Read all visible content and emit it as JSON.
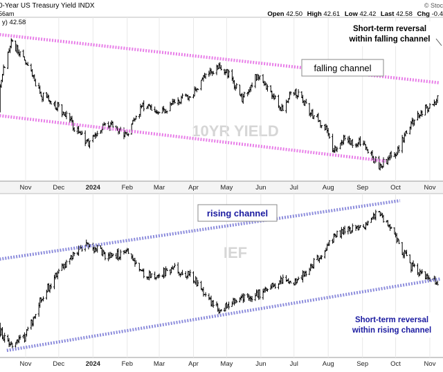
{
  "header": {
    "title": "0-Year US Treasury Yield",
    "exchange": "INDX",
    "brand": "© Stoc",
    "time": "56am",
    "ohlc": [
      {
        "label": "Open",
        "value": "42.50"
      },
      {
        "label": "High",
        "value": "42.61"
      },
      {
        "label": "Low",
        "value": "42.42"
      },
      {
        "label": "Last",
        "value": "42.58"
      },
      {
        "label": "Chg",
        "value": "-0.4"
      }
    ],
    "last_label": "y) 42.58"
  },
  "colors": {
    "falling_channel": "#e87ee8",
    "rising_channel": "#8c8cdc",
    "annotation_text_top": "#000000",
    "annotation_text_bottom": "#1a1aa0",
    "watermark": "#d6d6d6",
    "bars": "#000000"
  },
  "chart_data": [
    {
      "type": "ohlc",
      "panel": "top",
      "watermark": "10YR YIELD",
      "x_tick_labels": [
        "Nov",
        "Dec",
        "2024",
        "Feb",
        "Mar",
        "Apr",
        "May",
        "Jun",
        "Jul",
        "Aug",
        "Sep",
        "Oct",
        "Nov"
      ],
      "x_ticks": [
        "2023-11-01",
        "2023-12-01",
        "2024-01-01",
        "2024-02-01",
        "2024-03-01",
        "2024-04-01",
        "2024-05-01",
        "2024-06-01",
        "2024-07-01",
        "2024-08-01",
        "2024-09-01",
        "2024-10-01",
        "2024-11-01"
      ],
      "last_value": 42.58,
      "keypoints": [
        {
          "date": "2023-10-01",
          "y": 38.0
        },
        {
          "date": "2023-10-10",
          "y": 46.0
        },
        {
          "date": "2023-10-19",
          "y": 49.8
        },
        {
          "date": "2023-11-01",
          "y": 47.5
        },
        {
          "date": "2023-11-15",
          "y": 44.0
        },
        {
          "date": "2023-12-01",
          "y": 42.6
        },
        {
          "date": "2023-12-27",
          "y": 38.6
        },
        {
          "date": "2024-01-15",
          "y": 40.8
        },
        {
          "date": "2024-02-01",
          "y": 39.6
        },
        {
          "date": "2024-02-15",
          "y": 42.8
        },
        {
          "date": "2024-03-01",
          "y": 42.0
        },
        {
          "date": "2024-03-15",
          "y": 43.2
        },
        {
          "date": "2024-04-01",
          "y": 44.2
        },
        {
          "date": "2024-04-15",
          "y": 46.4
        },
        {
          "date": "2024-04-25",
          "y": 47.2
        },
        {
          "date": "2024-05-01",
          "y": 46.6
        },
        {
          "date": "2024-05-15",
          "y": 43.6
        },
        {
          "date": "2024-05-29",
          "y": 46.2
        },
        {
          "date": "2024-06-10",
          "y": 44.2
        },
        {
          "date": "2024-06-20",
          "y": 42.5
        },
        {
          "date": "2024-07-01",
          "y": 44.5
        },
        {
          "date": "2024-07-15",
          "y": 42.2
        },
        {
          "date": "2024-08-01",
          "y": 40.0
        },
        {
          "date": "2024-08-05",
          "y": 37.8
        },
        {
          "date": "2024-08-15",
          "y": 39.2
        },
        {
          "date": "2024-09-01",
          "y": 38.5
        },
        {
          "date": "2024-09-16",
          "y": 36.2
        },
        {
          "date": "2024-10-01",
          "y": 37.6
        },
        {
          "date": "2024-10-15",
          "y": 40.8
        },
        {
          "date": "2024-11-01",
          "y": 42.9
        },
        {
          "date": "2024-11-10",
          "y": 43.6
        }
      ],
      "ylim": [
        34.5,
        52.5
      ],
      "channel": [
        {
          "name": "upper",
          "start": {
            "date": "2023-10-01",
            "y": 50.7
          },
          "end": {
            "date": "2024-11-10",
            "y": 45.3
          }
        },
        {
          "name": "lower",
          "start": {
            "date": "2023-10-01",
            "y": 41.8
          },
          "end": {
            "date": "2024-09-22",
            "y": 36.7
          }
        }
      ],
      "annotations": [
        {
          "text": "falling channel",
          "boxed": true
        },
        {
          "text": "Short-term reversal\nwithin falling channel",
          "boxed": false
        }
      ]
    },
    {
      "type": "ohlc",
      "panel": "bottom",
      "watermark": "IEF",
      "x_tick_labels": [
        "Nov",
        "Dec",
        "2024",
        "Feb",
        "Mar",
        "Apr",
        "May",
        "Jun",
        "Jul",
        "Aug",
        "Sep",
        "Oct",
        "Nov"
      ],
      "x_ticks": [
        "2023-11-01",
        "2023-12-01",
        "2024-01-01",
        "2024-02-01",
        "2024-03-01",
        "2024-04-01",
        "2024-05-01",
        "2024-06-01",
        "2024-07-01",
        "2024-08-01",
        "2024-09-01",
        "2024-10-01",
        "2024-11-01"
      ],
      "keypoints": [
        {
          "date": "2023-10-01",
          "y": 89.0
        },
        {
          "date": "2023-10-19",
          "y": 86.8
        },
        {
          "date": "2023-11-01",
          "y": 87.6
        },
        {
          "date": "2023-11-15",
          "y": 90.8
        },
        {
          "date": "2023-12-01",
          "y": 93.2
        },
        {
          "date": "2023-12-27",
          "y": 95.6
        },
        {
          "date": "2024-01-15",
          "y": 94.3
        },
        {
          "date": "2024-02-01",
          "y": 94.9
        },
        {
          "date": "2024-02-15",
          "y": 93.0
        },
        {
          "date": "2024-03-01",
          "y": 92.9
        },
        {
          "date": "2024-03-15",
          "y": 93.4
        },
        {
          "date": "2024-04-01",
          "y": 92.6
        },
        {
          "date": "2024-04-15",
          "y": 90.6
        },
        {
          "date": "2024-04-25",
          "y": 89.9
        },
        {
          "date": "2024-05-10",
          "y": 90.7
        },
        {
          "date": "2024-05-29",
          "y": 91.2
        },
        {
          "date": "2024-06-10",
          "y": 91.8
        },
        {
          "date": "2024-06-20",
          "y": 92.4
        },
        {
          "date": "2024-07-01",
          "y": 92.1
        },
        {
          "date": "2024-07-15",
          "y": 93.4
        },
        {
          "date": "2024-08-01",
          "y": 95.3
        },
        {
          "date": "2024-08-05",
          "y": 96.0
        },
        {
          "date": "2024-08-15",
          "y": 96.6
        },
        {
          "date": "2024-09-01",
          "y": 96.9
        },
        {
          "date": "2024-09-16",
          "y": 98.3
        },
        {
          "date": "2024-10-01",
          "y": 96.0
        },
        {
          "date": "2024-10-15",
          "y": 93.6
        },
        {
          "date": "2024-11-01",
          "y": 92.4
        },
        {
          "date": "2024-11-10",
          "y": 92.2
        }
      ],
      "ylim": [
        85.8,
        99.8
      ],
      "channel": [
        {
          "name": "upper",
          "start": {
            "date": "2023-10-01",
            "y": 94.1
          },
          "end": {
            "date": "2024-10-05",
            "y": 99.2
          }
        },
        {
          "name": "lower",
          "start": {
            "date": "2023-10-15",
            "y": 86.4
          },
          "end": {
            "date": "2024-11-10",
            "y": 92.5
          }
        }
      ],
      "annotations": [
        {
          "text": "rising channel",
          "boxed": true
        },
        {
          "text": "Short-term reversal\nwithin rising channel",
          "boxed": false
        }
      ]
    }
  ]
}
